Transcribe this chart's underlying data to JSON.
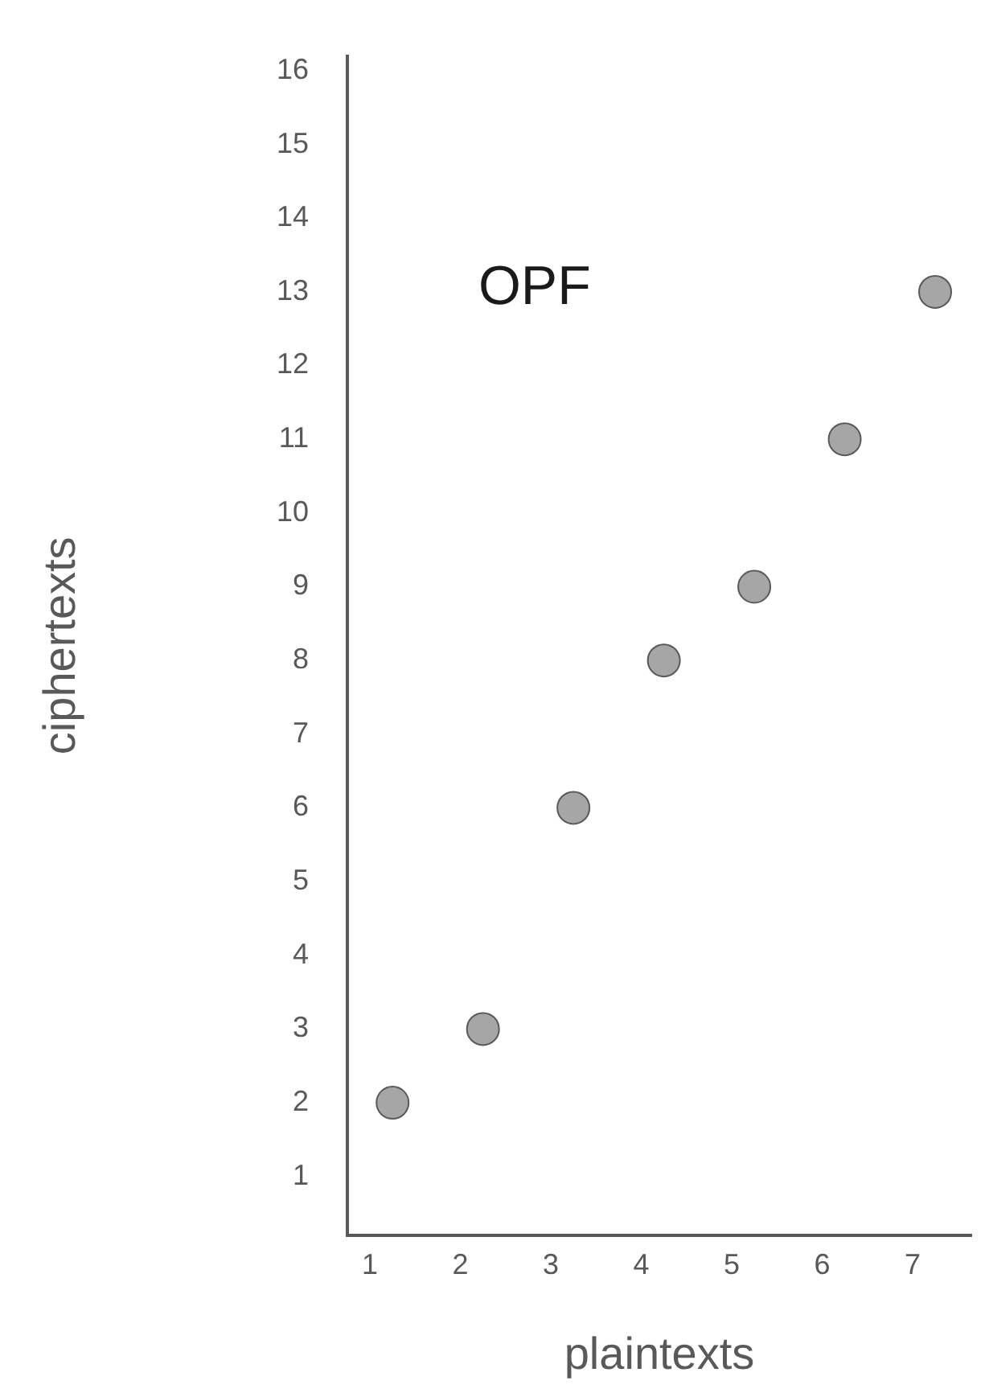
{
  "chart_data": {
    "type": "scatter",
    "xlabel": "plaintexts",
    "ylabel": "ciphertexts",
    "annotations": [
      "OPF"
    ],
    "x": [
      1.25,
      2.25,
      3.25,
      4.25,
      5.25,
      6.25,
      7.25
    ],
    "series": [
      {
        "color": "#a6a6a6",
        "values": [
          2,
          3,
          6,
          8,
          9,
          11,
          13
        ]
      }
    ],
    "xlim": [
      0.75,
      7.65
    ],
    "xticks": [
      1,
      2,
      3,
      4,
      5,
      6,
      7
    ],
    "ylim": [
      0.2,
      16.2
    ],
    "yticks": [
      1,
      2,
      3,
      4,
      5,
      6,
      7,
      8,
      9,
      10,
      11,
      12,
      13,
      14,
      15,
      16
    ],
    "grid": false,
    "legend": false,
    "marker": "circle"
  }
}
